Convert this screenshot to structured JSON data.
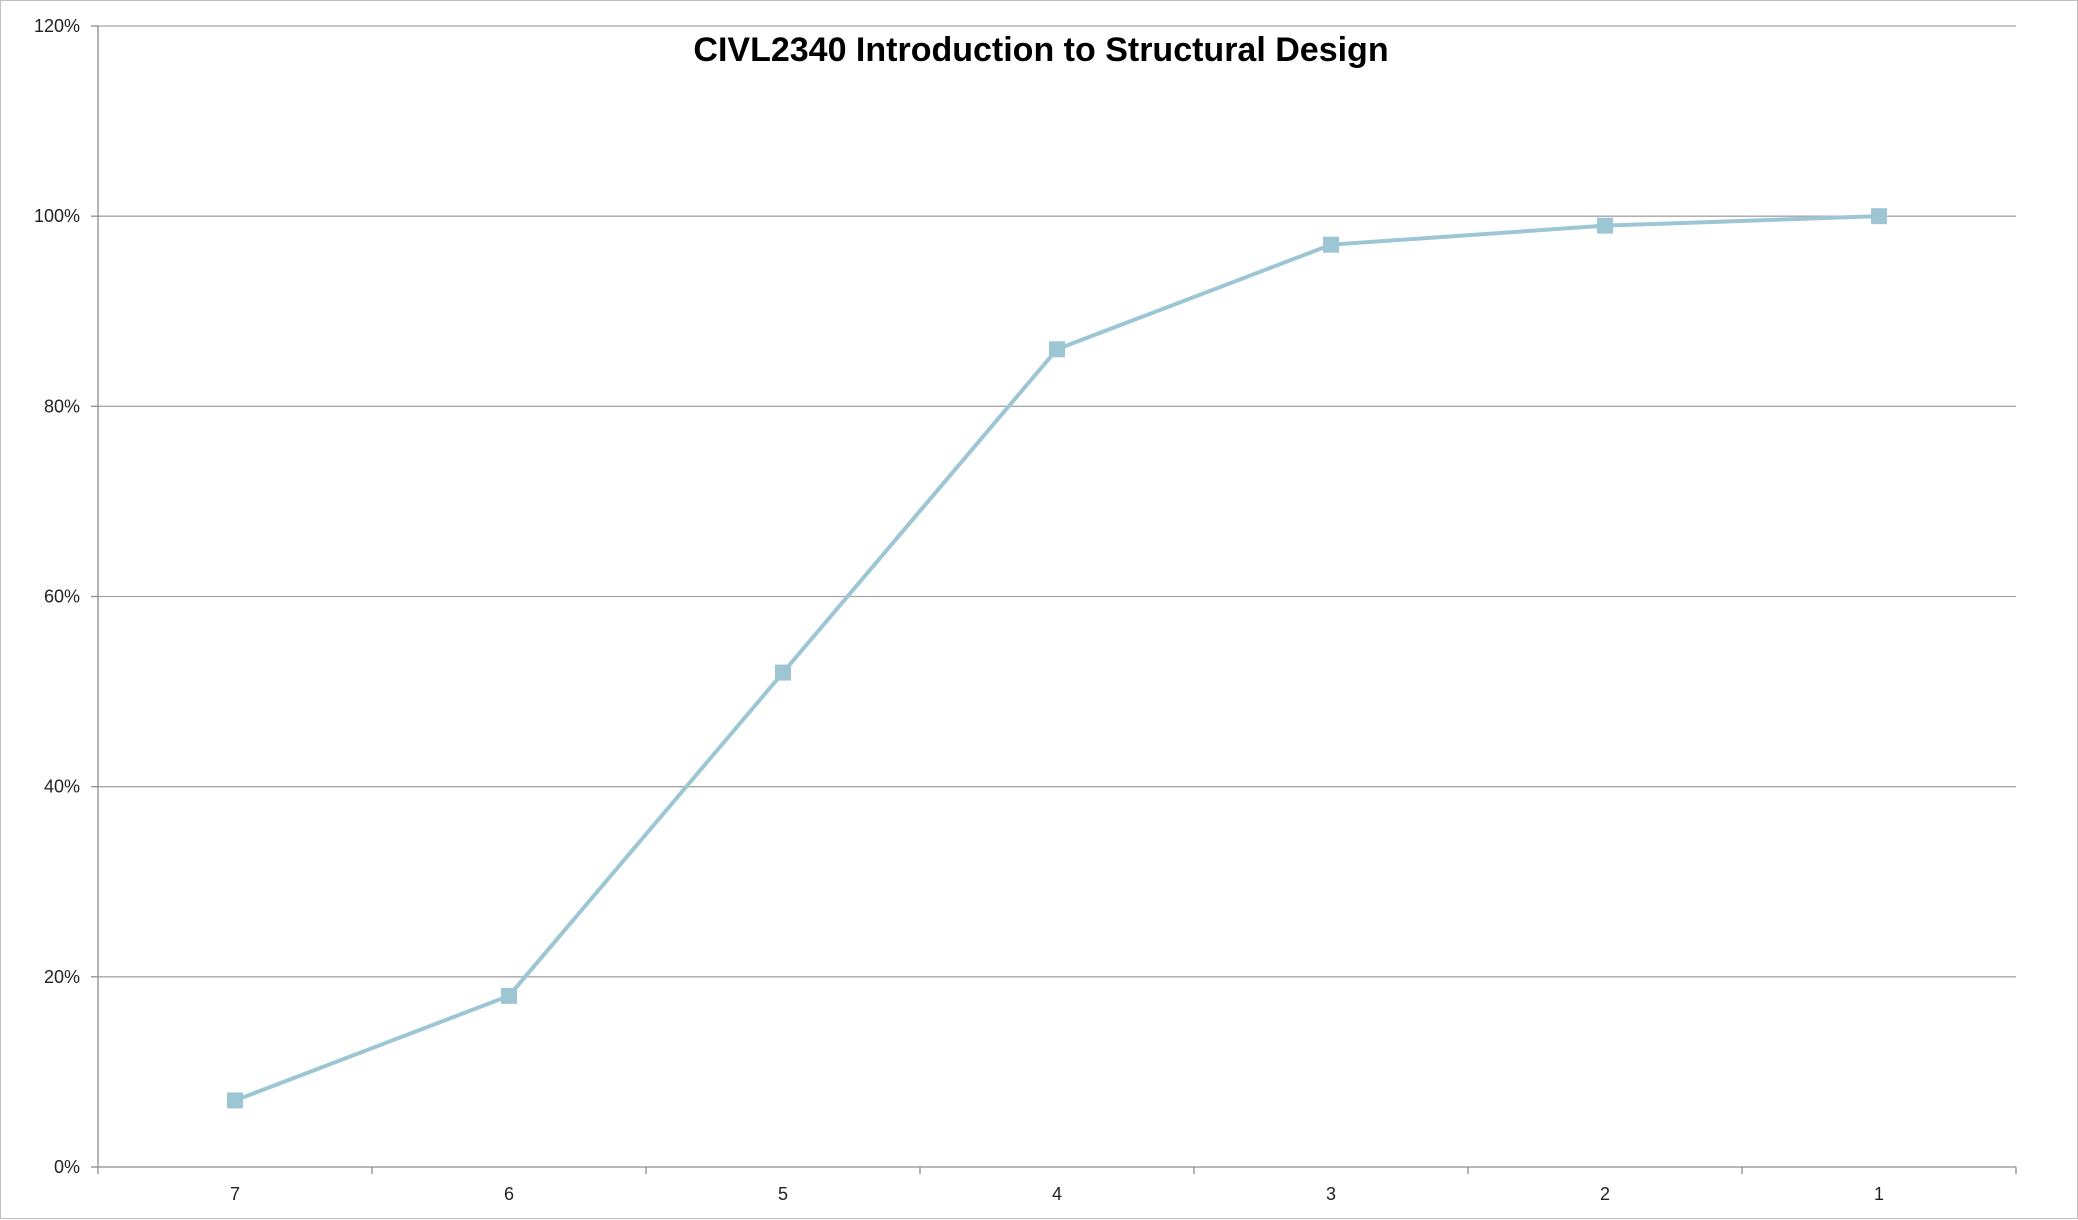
{
  "chart_data": {
    "type": "line",
    "title": "CIVL2340 Introduction to Structural Design",
    "xlabel": "",
    "ylabel": "",
    "categories": [
      "7",
      "6",
      "5",
      "4",
      "3",
      "2",
      "1"
    ],
    "series": [
      {
        "values": [
          7,
          18,
          52,
          86,
          97,
          99,
          100
        ],
        "color": "#9dc6d4",
        "marker": "square"
      }
    ],
    "ylim": [
      0,
      120
    ],
    "yticks": [
      0,
      20,
      40,
      60,
      80,
      100,
      120
    ],
    "ytick_labels": [
      "0%",
      "20%",
      "40%",
      "60%",
      "80%",
      "100%",
      "120%"
    ],
    "grid": true,
    "legend": "none"
  }
}
